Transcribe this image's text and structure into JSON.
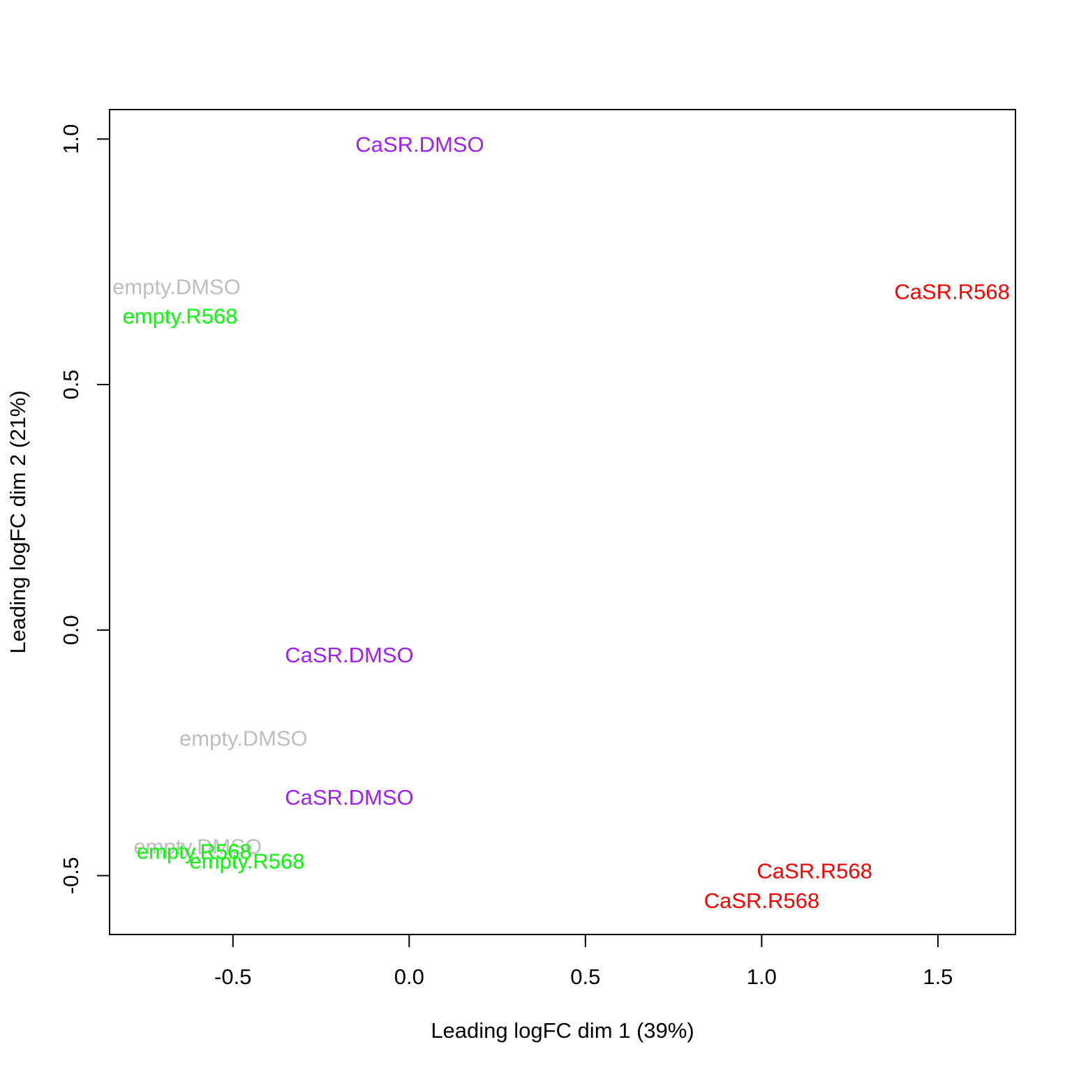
{
  "chart_data": {
    "type": "scatter",
    "title": "",
    "xlabel": "Leading logFC dim 1 (39%)",
    "ylabel": "Leading logFC dim 2 (21%)",
    "xlim": [
      -0.85,
      1.72
    ],
    "ylim": [
      -0.62,
      1.06
    ],
    "xticks": [
      -0.5,
      0.0,
      0.5,
      1.0,
      1.5
    ],
    "xtick_labels": [
      "-0.5",
      "0.0",
      "0.5",
      "1.0",
      "1.5"
    ],
    "yticks": [
      -0.5,
      0.0,
      0.5,
      1.0
    ],
    "ytick_labels": [
      "-0.5",
      "0.0",
      "0.5",
      "1.0"
    ],
    "grid": false,
    "legend": "none",
    "colors": {
      "CaSR.DMSO": "#A020F0",
      "CaSR.R568": "#FF0000",
      "empty.DMSO": "#BEBEBE",
      "empty.R568": "#00FF00"
    },
    "points": [
      {
        "label": "CaSR.DMSO",
        "x": 0.03,
        "y": 0.99
      },
      {
        "label": "CaSR.DMSO",
        "x": -0.17,
        "y": -0.05
      },
      {
        "label": "CaSR.DMSO",
        "x": -0.17,
        "y": -0.34
      },
      {
        "label": "CaSR.R568",
        "x": 1.54,
        "y": 0.69
      },
      {
        "label": "CaSR.R568",
        "x": 1.15,
        "y": -0.49
      },
      {
        "label": "CaSR.R568",
        "x": 1.0,
        "y": -0.55
      },
      {
        "label": "empty.DMSO",
        "x": -0.66,
        "y": 0.7
      },
      {
        "label": "empty.DMSO",
        "x": -0.47,
        "y": -0.22
      },
      {
        "label": "empty.DMSO",
        "x": -0.6,
        "y": -0.44
      },
      {
        "label": "empty.R568",
        "x": -0.65,
        "y": 0.64
      },
      {
        "label": "empty.R568",
        "x": -0.61,
        "y": -0.45
      },
      {
        "label": "empty.R568",
        "x": -0.46,
        "y": -0.47
      }
    ]
  }
}
